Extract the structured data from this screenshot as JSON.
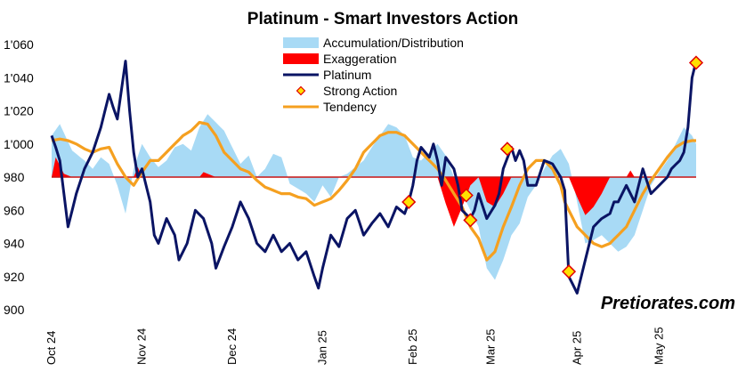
{
  "chart_data": {
    "type": "line",
    "title": "Platinum - Smart Investors Action",
    "ylim": [
      900,
      1060
    ],
    "yticks": [
      "1'060",
      "1'040",
      "1'020",
      "1'000",
      "980",
      "960",
      "940",
      "920",
      "900"
    ],
    "ytick_values": [
      1060,
      1040,
      1020,
      1000,
      980,
      960,
      940,
      920,
      900
    ],
    "xticks": [
      "Oct 24",
      "Nov 24",
      "Dec 24",
      "Jan 25",
      "Feb 25",
      "Mar 25",
      "Apr 25",
      "May 25"
    ],
    "xtick_positions": [
      0,
      22,
      44,
      66,
      88,
      107,
      128,
      148
    ],
    "x_count": 158,
    "baseline": 980,
    "legend_position": "top-center",
    "grid": false,
    "brand": "Pretiorates.com",
    "series": [
      {
        "name": "Accumulation/Distribution",
        "kind": "area",
        "color": "#a8daf5",
        "keypoints": [
          [
            0,
            1005
          ],
          [
            2,
            1012
          ],
          [
            5,
            996
          ],
          [
            8,
            990
          ],
          [
            10,
            985
          ],
          [
            12,
            992
          ],
          [
            14,
            988
          ],
          [
            16,
            975
          ],
          [
            18,
            958
          ],
          [
            20,
            985
          ],
          [
            22,
            1000
          ],
          [
            24,
            992
          ],
          [
            26,
            986
          ],
          [
            28,
            990
          ],
          [
            30,
            998
          ],
          [
            32,
            1000
          ],
          [
            34,
            996
          ],
          [
            36,
            1010
          ],
          [
            38,
            1018
          ],
          [
            40,
            1013
          ],
          [
            42,
            1008
          ],
          [
            44,
            998
          ],
          [
            46,
            988
          ],
          [
            48,
            993
          ],
          [
            50,
            980
          ],
          [
            52,
            985
          ],
          [
            54,
            994
          ],
          [
            56,
            992
          ],
          [
            58,
            976
          ],
          [
            60,
            973
          ],
          [
            62,
            970
          ],
          [
            64,
            965
          ],
          [
            66,
            975
          ],
          [
            68,
            968
          ],
          [
            70,
            980
          ],
          [
            72,
            982
          ],
          [
            74,
            986
          ],
          [
            76,
            990
          ],
          [
            78,
            998
          ],
          [
            80,
            1005
          ],
          [
            82,
            1012
          ],
          [
            84,
            1010
          ],
          [
            86,
            1005
          ],
          [
            88,
            992
          ],
          [
            90,
            990
          ],
          [
            92,
            995
          ],
          [
            94,
            1000
          ],
          [
            96,
            993
          ],
          [
            98,
            980
          ],
          [
            100,
            970
          ],
          [
            102,
            960
          ],
          [
            104,
            950
          ],
          [
            106,
            925
          ],
          [
            108,
            918
          ],
          [
            110,
            930
          ],
          [
            112,
            945
          ],
          [
            114,
            952
          ],
          [
            116,
            968
          ],
          [
            118,
            975
          ],
          [
            120,
            985
          ],
          [
            122,
            993
          ],
          [
            124,
            997
          ],
          [
            126,
            988
          ],
          [
            128,
            965
          ],
          [
            130,
            940
          ],
          [
            132,
            942
          ],
          [
            134,
            945
          ],
          [
            136,
            940
          ],
          [
            138,
            935
          ],
          [
            140,
            938
          ],
          [
            142,
            945
          ],
          [
            144,
            960
          ],
          [
            146,
            975
          ],
          [
            148,
            983
          ],
          [
            150,
            990
          ],
          [
            152,
            1000
          ],
          [
            154,
            1010
          ],
          [
            156,
            1005
          ],
          [
            157,
            1000
          ]
        ]
      },
      {
        "name": "Exaggeration",
        "kind": "area",
        "color": "#ff0000",
        "keypoints": [
          [
            0,
            980
          ],
          [
            1,
            992
          ],
          [
            3,
            982
          ],
          [
            5,
            980
          ],
          [
            20,
            980
          ],
          [
            21,
            986
          ],
          [
            22,
            980
          ],
          [
            36,
            980
          ],
          [
            37,
            983
          ],
          [
            40,
            980
          ],
          [
            94,
            980
          ],
          [
            96,
            964
          ],
          [
            98,
            950
          ],
          [
            100,
            962
          ],
          [
            102,
            975
          ],
          [
            104,
            980
          ],
          [
            106,
            965
          ],
          [
            108,
            962
          ],
          [
            110,
            970
          ],
          [
            112,
            980
          ],
          [
            126,
            980
          ],
          [
            128,
            968
          ],
          [
            130,
            957
          ],
          [
            132,
            962
          ],
          [
            134,
            970
          ],
          [
            136,
            980
          ],
          [
            140,
            980
          ],
          [
            141,
            984
          ],
          [
            142,
            980
          ],
          [
            157,
            980
          ]
        ]
      },
      {
        "name": "Platinum",
        "kind": "line",
        "color": "#0a1464",
        "keypoints": [
          [
            0,
            1005
          ],
          [
            1,
            998
          ],
          [
            2,
            990
          ],
          [
            3,
            970
          ],
          [
            4,
            950
          ],
          [
            6,
            970
          ],
          [
            8,
            985
          ],
          [
            10,
            995
          ],
          [
            12,
            1010
          ],
          [
            14,
            1030
          ],
          [
            15,
            1022
          ],
          [
            16,
            1015
          ],
          [
            18,
            1050
          ],
          [
            19,
            1020
          ],
          [
            20,
            995
          ],
          [
            21,
            980
          ],
          [
            22,
            985
          ],
          [
            23,
            975
          ],
          [
            24,
            965
          ],
          [
            25,
            945
          ],
          [
            26,
            940
          ],
          [
            28,
            955
          ],
          [
            30,
            945
          ],
          [
            31,
            930
          ],
          [
            33,
            940
          ],
          [
            35,
            960
          ],
          [
            37,
            955
          ],
          [
            39,
            940
          ],
          [
            40,
            925
          ],
          [
            42,
            938
          ],
          [
            44,
            950
          ],
          [
            46,
            965
          ],
          [
            48,
            955
          ],
          [
            50,
            940
          ],
          [
            52,
            935
          ],
          [
            54,
            945
          ],
          [
            56,
            935
          ],
          [
            58,
            940
          ],
          [
            60,
            930
          ],
          [
            62,
            935
          ],
          [
            64,
            920
          ],
          [
            65,
            913
          ],
          [
            66,
            925
          ],
          [
            68,
            945
          ],
          [
            70,
            938
          ],
          [
            72,
            955
          ],
          [
            74,
            960
          ],
          [
            76,
            945
          ],
          [
            78,
            952
          ],
          [
            80,
            958
          ],
          [
            82,
            950
          ],
          [
            84,
            962
          ],
          [
            86,
            958
          ],
          [
            87,
            965
          ],
          [
            88,
            975
          ],
          [
            89,
            990
          ],
          [
            90,
            998
          ],
          [
            92,
            992
          ],
          [
            93,
            1000
          ],
          [
            94,
            990
          ],
          [
            95,
            975
          ],
          [
            96,
            992
          ],
          [
            98,
            985
          ],
          [
            99,
            975
          ],
          [
            100,
            960
          ],
          [
            102,
            955
          ],
          [
            103,
            960
          ],
          [
            104,
            970
          ],
          [
            106,
            955
          ],
          [
            108,
            963
          ],
          [
            109,
            970
          ],
          [
            110,
            985
          ],
          [
            112,
            998
          ],
          [
            113,
            990
          ],
          [
            114,
            996
          ],
          [
            115,
            990
          ],
          [
            116,
            975
          ],
          [
            118,
            975
          ],
          [
            120,
            990
          ],
          [
            122,
            988
          ],
          [
            124,
            980
          ],
          [
            125,
            972
          ],
          [
            126,
            920
          ],
          [
            127,
            915
          ],
          [
            128,
            910
          ],
          [
            130,
            930
          ],
          [
            132,
            950
          ],
          [
            134,
            955
          ],
          [
            136,
            958
          ],
          [
            137,
            965
          ],
          [
            138,
            965
          ],
          [
            140,
            975
          ],
          [
            142,
            965
          ],
          [
            144,
            985
          ],
          [
            146,
            970
          ],
          [
            148,
            975
          ],
          [
            150,
            980
          ],
          [
            151,
            985
          ],
          [
            153,
            990
          ],
          [
            154,
            995
          ],
          [
            155,
            1010
          ],
          [
            156,
            1040
          ],
          [
            157,
            1050
          ]
        ]
      },
      {
        "name": "Strong Action",
        "kind": "markers",
        "color": "#ffe000",
        "edge_color": "#e00000",
        "points": [
          [
            87,
            965
          ],
          [
            101,
            969
          ],
          [
            102,
            954
          ],
          [
            111,
            997
          ],
          [
            126,
            923
          ],
          [
            157,
            1049
          ]
        ]
      },
      {
        "name": "Tendency",
        "kind": "line",
        "color": "#f5a020",
        "keypoints": [
          [
            0,
            1002
          ],
          [
            2,
            1003
          ],
          [
            4,
            1002
          ],
          [
            6,
            1000
          ],
          [
            8,
            997
          ],
          [
            10,
            995
          ],
          [
            12,
            997
          ],
          [
            14,
            998
          ],
          [
            16,
            988
          ],
          [
            18,
            980
          ],
          [
            20,
            975
          ],
          [
            22,
            983
          ],
          [
            24,
            990
          ],
          [
            26,
            990
          ],
          [
            28,
            995
          ],
          [
            30,
            1000
          ],
          [
            32,
            1005
          ],
          [
            34,
            1008
          ],
          [
            36,
            1013
          ],
          [
            38,
            1012
          ],
          [
            40,
            1005
          ],
          [
            42,
            995
          ],
          [
            44,
            990
          ],
          [
            46,
            985
          ],
          [
            48,
            983
          ],
          [
            50,
            978
          ],
          [
            52,
            974
          ],
          [
            54,
            972
          ],
          [
            56,
            970
          ],
          [
            58,
            970
          ],
          [
            60,
            968
          ],
          [
            62,
            967
          ],
          [
            64,
            963
          ],
          [
            66,
            965
          ],
          [
            68,
            967
          ],
          [
            70,
            972
          ],
          [
            72,
            978
          ],
          [
            74,
            985
          ],
          [
            76,
            995
          ],
          [
            78,
            1000
          ],
          [
            80,
            1005
          ],
          [
            82,
            1007
          ],
          [
            84,
            1007
          ],
          [
            86,
            1005
          ],
          [
            88,
            1000
          ],
          [
            90,
            995
          ],
          [
            92,
            990
          ],
          [
            94,
            985
          ],
          [
            96,
            978
          ],
          [
            98,
            970
          ],
          [
            100,
            962
          ],
          [
            102,
            950
          ],
          [
            104,
            943
          ],
          [
            106,
            930
          ],
          [
            108,
            935
          ],
          [
            110,
            950
          ],
          [
            112,
            962
          ],
          [
            114,
            975
          ],
          [
            116,
            985
          ],
          [
            118,
            990
          ],
          [
            120,
            990
          ],
          [
            122,
            985
          ],
          [
            124,
            975
          ],
          [
            125,
            965
          ],
          [
            126,
            960
          ],
          [
            128,
            950
          ],
          [
            130,
            945
          ],
          [
            132,
            940
          ],
          [
            134,
            938
          ],
          [
            136,
            940
          ],
          [
            138,
            945
          ],
          [
            140,
            950
          ],
          [
            142,
            960
          ],
          [
            144,
            970
          ],
          [
            146,
            978
          ],
          [
            148,
            985
          ],
          [
            150,
            992
          ],
          [
            152,
            998
          ],
          [
            154,
            1001
          ],
          [
            156,
            1002
          ],
          [
            157,
            1002
          ]
        ]
      }
    ]
  }
}
